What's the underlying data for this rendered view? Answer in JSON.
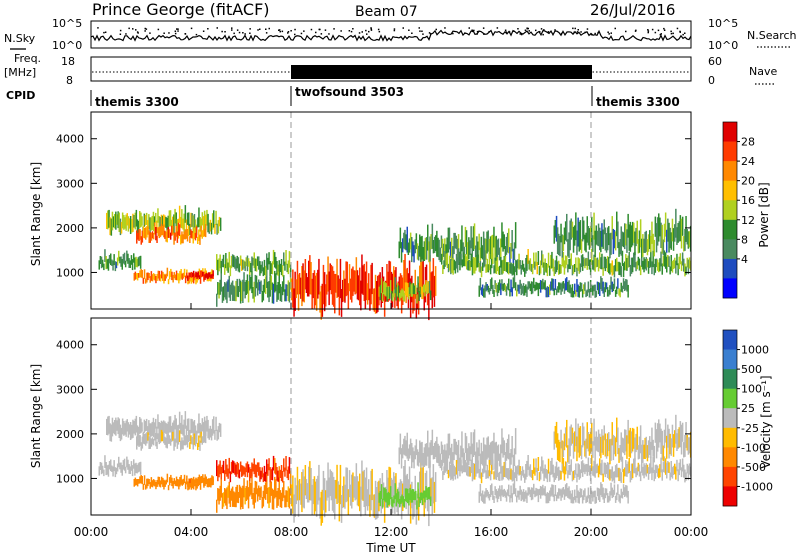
{
  "header": {
    "station": "Prince George (fitACF)",
    "beam": "Beam 07",
    "date": "26/Jul/2016"
  },
  "nsky_panel": {
    "left_label": "N.Sky",
    "right_label": "N.Search",
    "left_ticks": [
      "10^5",
      "10^0"
    ],
    "right_ticks": [
      "10^5",
      "10^0"
    ]
  },
  "freq_panel": {
    "left_label_1": "Freq.",
    "left_label_2": "[MHz]",
    "right_label": "Nave",
    "left_ticks": [
      "18",
      "8"
    ],
    "right_ticks": [
      "60",
      "0"
    ]
  },
  "cpid": {
    "label": "CPID",
    "segments": [
      {
        "name": "themis 3300",
        "start_hour": 0,
        "end_hour": 8
      },
      {
        "name": "twofsound 3503",
        "start_hour": 8,
        "end_hour": 20
      },
      {
        "name": "themis 3300",
        "start_hour": 20,
        "end_hour": 24
      }
    ]
  },
  "power_panel": {
    "ylabel": "Slant Range [km]",
    "yticks": [
      "4000",
      "3000",
      "2000",
      "1000"
    ],
    "colorbar_label": "Power [dB]",
    "colorbar_ticks": [
      "28",
      "24",
      "20",
      "16",
      "12",
      "8",
      "4"
    ],
    "colors": [
      "#e00000",
      "#ff3b00",
      "#ff8800",
      "#ffbf00",
      "#b0d020",
      "#2e8b2e",
      "#4a8a60",
      "#1e4cbf",
      "#0000ff"
    ]
  },
  "velocity_panel": {
    "ylabel": "Slant Range [km]",
    "yticks": [
      "4000",
      "3000",
      "2000",
      "1000"
    ],
    "colorbar_label": "Velocity [m s⁻¹]",
    "colorbar_ticks": [
      "1000",
      "500",
      "100",
      "25",
      "-25",
      "-100",
      "-500",
      "-1000"
    ],
    "colors": [
      "#2050c0",
      "#3a7fd0",
      "#2e8b57",
      "#66cc33",
      "#bbbbbb",
      "#ffbb00",
      "#ff8800",
      "#ff4400",
      "#ee0000"
    ]
  },
  "time_axis": {
    "xlabel": "Time UT",
    "ticks": [
      "00:00",
      "04:00",
      "08:00",
      "12:00",
      "16:00",
      "20:00",
      "00:00"
    ]
  },
  "chart_data": {
    "type": "heatmap",
    "title": "Prince George (fitACF)",
    "subtitle": "Beam 07",
    "date": "26/Jul/2016",
    "xlabel": "Time UT",
    "xlim_hours": [
      0,
      24
    ],
    "ylabel": "Slant Range [km]",
    "ylim_km": [
      180,
      4600
    ],
    "mode_changes_hours": [
      8,
      20
    ],
    "power_db_range": [
      0,
      30
    ],
    "velocity_range": [
      -1000,
      1000
    ],
    "echo_regions": [
      {
        "t0": 0.6,
        "t1": 5.2,
        "r0": 1900,
        "r1": 2500,
        "power_db": 14,
        "velocity": -10
      },
      {
        "t0": 1.8,
        "t1": 4.6,
        "r0": 1700,
        "r1": 2100,
        "power_db": 24,
        "velocity": -15
      },
      {
        "t0": 0.3,
        "t1": 2.0,
        "r0": 1100,
        "r1": 1500,
        "power_db": 10,
        "velocity": 0
      },
      {
        "t0": 1.7,
        "t1": 4.9,
        "r0": 800,
        "r1": 1100,
        "power_db": 22,
        "velocity": -300
      },
      {
        "t0": 3.8,
        "t1": 4.9,
        "r0": 850,
        "r1": 1050,
        "power_db": 30,
        "velocity": -400
      },
      {
        "t0": 5.0,
        "t1": 8.0,
        "r0": 400,
        "r1": 1100,
        "power_db": 10,
        "velocity": -150
      },
      {
        "t0": 5.0,
        "t1": 8.0,
        "r0": 1000,
        "r1": 1500,
        "power_db": 12,
        "velocity": -800
      },
      {
        "t0": 8.0,
        "t1": 13.8,
        "r0": 200,
        "r1": 1400,
        "power_db": 27,
        "velocity": -20
      },
      {
        "t0": 11.5,
        "t1": 13.6,
        "r0": 400,
        "r1": 900,
        "power_db": 14,
        "velocity": 50
      },
      {
        "t0": 12.3,
        "t1": 17.0,
        "r0": 1300,
        "r1": 2100,
        "power_db": 10,
        "velocity": -10
      },
      {
        "t0": 14.0,
        "t1": 24.0,
        "r0": 1000,
        "r1": 1500,
        "power_db": 12,
        "velocity": -15
      },
      {
        "t0": 15.5,
        "t1": 21.5,
        "r0": 500,
        "r1": 900,
        "power_db": 9,
        "velocity": -10
      },
      {
        "t0": 18.5,
        "t1": 24.0,
        "r0": 1500,
        "r1": 2400,
        "power_db": 10,
        "velocity": -20
      }
    ]
  }
}
